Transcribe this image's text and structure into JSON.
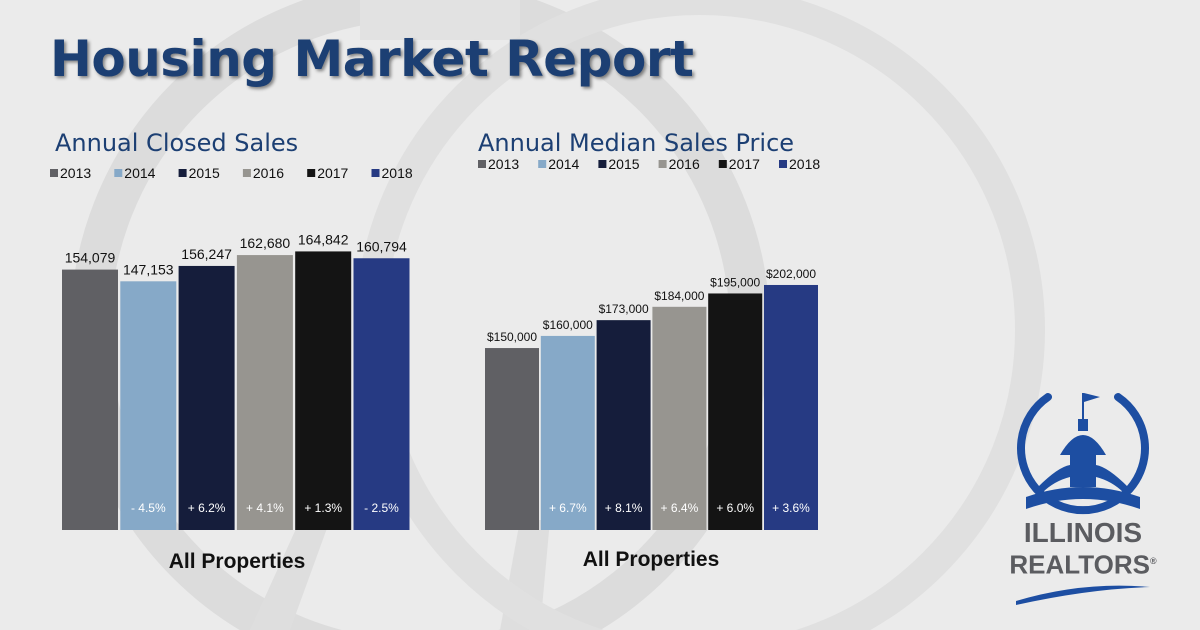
{
  "title": "Housing Market Report",
  "colors": {
    "title": "#1c3f73",
    "series": [
      "#606064",
      "#86a9c8",
      "#151d3b",
      "#979590",
      "#141414",
      "#263a83"
    ],
    "logo_blue": "#1d4ea2",
    "logo_gray": "#5b5c60"
  },
  "chart_data": [
    {
      "type": "bar",
      "title": "Annual Closed Sales",
      "categories": [
        "All Properties"
      ],
      "series": [
        {
          "name": "2013",
          "values": [
            154079
          ],
          "value_label": "154,079",
          "change_label": ""
        },
        {
          "name": "2014",
          "values": [
            147153
          ],
          "value_label": "147,153",
          "change_label": "- 4.5%"
        },
        {
          "name": "2015",
          "values": [
            156247
          ],
          "value_label": "156,247",
          "change_label": "+ 6.2%"
        },
        {
          "name": "2016",
          "values": [
            162680
          ],
          "value_label": "162,680",
          "change_label": "+ 4.1%"
        },
        {
          "name": "2017",
          "values": [
            164842
          ],
          "value_label": "164,842",
          "change_label": "+ 1.3%"
        },
        {
          "name": "2018",
          "values": [
            160794
          ],
          "value_label": "160,794",
          "change_label": "- 2.5%"
        }
      ],
      "ylim": [
        0,
        170000
      ],
      "grid": false,
      "legend_position": "top-left"
    },
    {
      "type": "bar",
      "title": "Annual Median Sales Price",
      "categories": [
        "All Properties"
      ],
      "series": [
        {
          "name": "2013",
          "values": [
            150000
          ],
          "value_label": "$150,000",
          "change_label": ""
        },
        {
          "name": "2014",
          "values": [
            160000
          ],
          "value_label": "$160,000",
          "change_label": "+ 6.7%"
        },
        {
          "name": "2015",
          "values": [
            173000
          ],
          "value_label": "$173,000",
          "change_label": "+ 8.1%"
        },
        {
          "name": "2016",
          "values": [
            184000
          ],
          "value_label": "$184,000",
          "change_label": "+ 6.4%"
        },
        {
          "name": "2017",
          "values": [
            195000
          ],
          "value_label": "$195,000",
          "change_label": "+ 6.0%"
        },
        {
          "name": "2018",
          "values": [
            202000
          ],
          "value_label": "$202,000",
          "change_label": "+ 3.6%"
        }
      ],
      "ylim": [
        0,
        260000
      ],
      "grid": false,
      "legend_position": "top-left"
    }
  ],
  "logo": {
    "icon": "capitol-dome-icon",
    "line1": "ILLINOIS",
    "line2": "REALTORS",
    "mark": "®"
  }
}
